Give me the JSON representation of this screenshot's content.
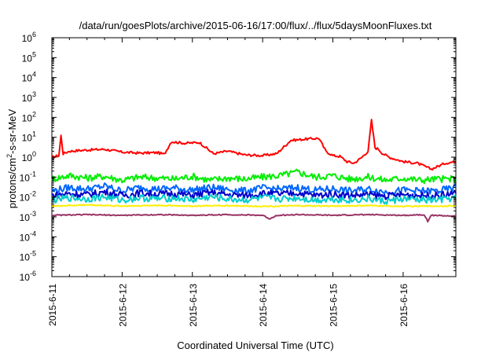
{
  "chart_data": {
    "type": "line",
    "title": "/data/run/goesPlots/archive/2015-06-16/17:00/flux/../flux/5daysMoonFluxes.txt",
    "xlabel": "Coordinated Universal Time (UTC)",
    "ylabel": {
      "main": "protons/cm",
      "sup": "2",
      "tail": "-s-sr-MeV"
    },
    "x_range_days": [
      0,
      5.75
    ],
    "x_ticks": [
      {
        "day": 0,
        "label": "2015-6-11"
      },
      {
        "day": 1,
        "label": "2015-6-12"
      },
      {
        "day": 2,
        "label": "2015-6-13"
      },
      {
        "day": 3,
        "label": "2015-6-14"
      },
      {
        "day": 4,
        "label": "2015-6-15"
      },
      {
        "day": 5,
        "label": "2015-6-16"
      }
    ],
    "y_scale": "log",
    "y_range_exp": [
      -6,
      6
    ],
    "y_ticks": [
      {
        "exp": -6,
        "base": "10",
        "sup": "-6"
      },
      {
        "exp": -5,
        "base": "10",
        "sup": "-5"
      },
      {
        "exp": -4,
        "base": "10",
        "sup": "-4"
      },
      {
        "exp": -3,
        "base": "10",
        "sup": "-3"
      },
      {
        "exp": -2,
        "base": "10",
        "sup": "-2"
      },
      {
        "exp": -1,
        "base": "10",
        "sup": "-1"
      },
      {
        "exp": 0,
        "base": "10",
        "sup": "0"
      },
      {
        "exp": 1,
        "base": "10",
        "sup": "1"
      },
      {
        "exp": 2,
        "base": "10",
        "sup": "2"
      },
      {
        "exp": 3,
        "base": "10",
        "sup": "3"
      },
      {
        "exp": 4,
        "base": "10",
        "sup": "4"
      },
      {
        "exp": 5,
        "base": "10",
        "sup": "5"
      },
      {
        "exp": 6,
        "base": "10",
        "sup": "6"
      }
    ],
    "grid": false,
    "legend": "none",
    "series": [
      {
        "color": "#ff0000",
        "x": [
          0,
          0.1,
          0.13,
          0.16,
          0.25,
          0.5,
          0.75,
          1.0,
          1.25,
          1.5,
          1.6,
          1.7,
          1.9,
          2.1,
          2.3,
          2.5,
          2.75,
          3.0,
          3.2,
          3.4,
          3.6,
          3.8,
          3.9,
          4.0,
          4.1,
          4.2,
          4.3,
          4.4,
          4.5,
          4.55,
          4.6,
          4.65,
          4.7,
          4.8,
          5.0,
          5.2,
          5.4,
          5.6,
          5.75
        ],
        "values": [
          1,
          1.2,
          12,
          1.5,
          2,
          2.3,
          2.5,
          1.8,
          1.6,
          1.7,
          1.4,
          6,
          5,
          5.5,
          1.5,
          2,
          1.3,
          1.2,
          1.5,
          7,
          8,
          9,
          2,
          1.2,
          1.1,
          0.6,
          0.5,
          0.9,
          2,
          70,
          3,
          2.5,
          1.6,
          1,
          0.6,
          0.5,
          0.25,
          0.5,
          0.6
        ]
      },
      {
        "color": "#00ee00",
        "x": [
          0,
          0.25,
          0.5,
          0.75,
          1.0,
          1.25,
          1.5,
          1.75,
          2.0,
          2.25,
          2.5,
          2.75,
          3.0,
          3.25,
          3.5,
          3.75,
          4.0,
          4.25,
          4.5,
          4.75,
          5.0,
          5.25,
          5.5,
          5.75
        ],
        "values": [
          0.08,
          0.12,
          0.09,
          0.11,
          0.07,
          0.1,
          0.09,
          0.08,
          0.11,
          0.07,
          0.09,
          0.08,
          0.1,
          0.12,
          0.18,
          0.1,
          0.12,
          0.08,
          0.1,
          0.07,
          0.09,
          0.07,
          0.08,
          0.08
        ]
      },
      {
        "color": "#0066ff",
        "x": [
          0,
          0.25,
          0.5,
          0.75,
          1.0,
          1.25,
          1.5,
          1.75,
          2.0,
          2.25,
          2.5,
          2.75,
          3.0,
          3.25,
          3.5,
          3.75,
          4.0,
          4.25,
          4.5,
          4.75,
          5.0,
          5.25,
          5.5,
          5.75
        ],
        "values": [
          0.02,
          0.03,
          0.025,
          0.035,
          0.02,
          0.03,
          0.025,
          0.028,
          0.022,
          0.03,
          0.024,
          0.02,
          0.028,
          0.025,
          0.03,
          0.022,
          0.026,
          0.02,
          0.025,
          0.018,
          0.022,
          0.02,
          0.02,
          0.03
        ]
      },
      {
        "color": "#0000cc",
        "x": [
          0,
          0.25,
          0.5,
          0.75,
          1.0,
          1.25,
          1.5,
          1.75,
          2.0,
          2.25,
          2.5,
          2.75,
          3.0,
          3.25,
          3.5,
          3.75,
          4.0,
          4.25,
          4.5,
          4.75,
          5.0,
          5.25,
          5.5,
          5.75
        ],
        "values": [
          0.012,
          0.015,
          0.013,
          0.018,
          0.012,
          0.016,
          0.014,
          0.015,
          0.012,
          0.017,
          0.013,
          0.012,
          0.015,
          0.014,
          0.016,
          0.012,
          0.014,
          0.012,
          0.013,
          0.011,
          0.013,
          0.012,
          0.012,
          0.015
        ]
      },
      {
        "color": "#00cccc",
        "x": [
          0,
          0.25,
          0.5,
          0.75,
          1.0,
          1.25,
          1.5,
          1.75,
          2.0,
          2.25,
          2.5,
          2.75,
          3.0,
          3.25,
          3.5,
          3.75,
          4.0,
          4.25,
          4.5,
          4.75,
          5.0,
          5.25,
          5.5,
          5.75
        ],
        "values": [
          0.007,
          0.009,
          0.008,
          0.01,
          0.007,
          0.009,
          0.008,
          0.009,
          0.007,
          0.01,
          0.008,
          0.007,
          0.009,
          0.008,
          0.009,
          0.007,
          0.008,
          0.007,
          0.008,
          0.006,
          0.008,
          0.007,
          0.007,
          0.009
        ]
      },
      {
        "color": "#ffee00",
        "x": [
          0,
          0.5,
          1.0,
          1.5,
          2.0,
          2.5,
          3.0,
          3.5,
          4.0,
          4.5,
          5.0,
          5.5,
          5.75
        ],
        "values": [
          0.0035,
          0.004,
          0.0035,
          0.0038,
          0.0035,
          0.0037,
          0.0034,
          0.0036,
          0.0035,
          0.0037,
          0.0034,
          0.0035,
          0.0036
        ]
      },
      {
        "color": "#993366",
        "x": [
          0,
          0.5,
          1.0,
          1.5,
          2.0,
          2.5,
          3.0,
          3.1,
          3.2,
          3.5,
          4.0,
          4.5,
          5.0,
          5.3,
          5.35,
          5.4,
          5.75
        ],
        "values": [
          0.0012,
          0.0013,
          0.0012,
          0.0013,
          0.0012,
          0.0013,
          0.0012,
          0.0008,
          0.0012,
          0.0013,
          0.0012,
          0.0013,
          0.0012,
          0.0013,
          0.0006,
          0.0012,
          0.0011
        ]
      }
    ]
  }
}
